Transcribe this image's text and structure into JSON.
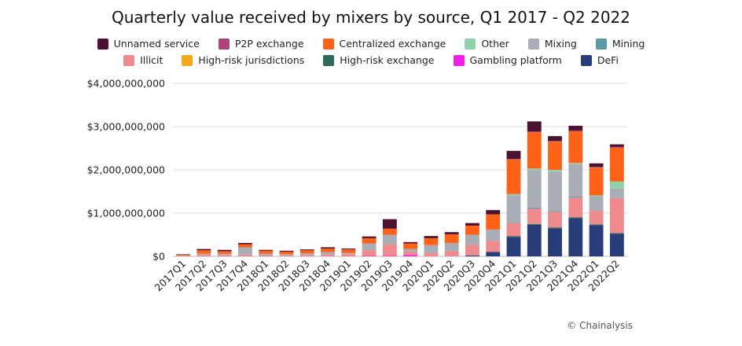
{
  "credit": "© Chainalysis",
  "legend_rows": [
    [
      "Unnamed service",
      "P2P exchange",
      "Centralized exchange",
      "Other",
      "Mixing",
      "Mining"
    ],
    [
      "Illicit",
      "High-risk jurisdictions",
      "High-risk exchange",
      "Gambling platform",
      "DeFi"
    ]
  ],
  "chart_data": {
    "type": "bar",
    "stacked": true,
    "title": "Quarterly value received by mixers by source, Q1 2017 - Q2 2022",
    "xlabel": "",
    "ylabel": "",
    "ylim": [
      0,
      4000000000
    ],
    "yticks": [
      {
        "value": 0,
        "label": "$0"
      },
      {
        "value": 1000000000,
        "label": "$1,000,000,000"
      },
      {
        "value": 2000000000,
        "label": "$2,000,000,000"
      },
      {
        "value": 3000000000,
        "label": "$3,000,000,000"
      },
      {
        "value": 4000000000,
        "label": "$4,000,000,000"
      }
    ],
    "grid": true,
    "legend_position": "top",
    "categories": [
      "2017Q1",
      "2017Q2",
      "2017Q3",
      "2017Q4",
      "2018Q1",
      "2018Q2",
      "2018Q3",
      "2018Q4",
      "2019Q1",
      "2019Q2",
      "2019Q3",
      "2019Q4",
      "2020Q1",
      "2020Q2",
      "2020Q3",
      "2020Q4",
      "2021Q1",
      "2021Q2",
      "2021Q3",
      "2021Q4",
      "2022Q1",
      "2022Q2"
    ],
    "series": [
      {
        "name": "DeFi",
        "color": "#283c7a",
        "values": [
          0,
          0,
          0,
          0,
          0,
          0,
          0,
          0,
          0,
          0,
          0,
          0,
          0,
          0,
          20000000,
          100000000,
          450000000,
          730000000,
          650000000,
          880000000,
          720000000,
          520000000
        ]
      },
      {
        "name": "Gambling platform",
        "color": "#f01ee6",
        "values": [
          0,
          0,
          0,
          0,
          0,
          0,
          0,
          0,
          0,
          10000000,
          10000000,
          30000000,
          0,
          0,
          0,
          0,
          0,
          0,
          0,
          0,
          0,
          0
        ]
      },
      {
        "name": "High-risk exchange",
        "color": "#2e6b5a",
        "values": [
          0,
          0,
          0,
          0,
          0,
          0,
          0,
          0,
          0,
          0,
          0,
          0,
          0,
          0,
          0,
          0,
          20000000,
          20000000,
          20000000,
          20000000,
          20000000,
          20000000
        ]
      },
      {
        "name": "High-risk jurisdictions",
        "color": "#f4a81d",
        "values": [
          0,
          0,
          0,
          0,
          0,
          0,
          0,
          0,
          0,
          0,
          0,
          0,
          0,
          0,
          0,
          0,
          0,
          0,
          0,
          0,
          0,
          0
        ]
      },
      {
        "name": "Illicit",
        "color": "#ef8a8e",
        "values": [
          10000000,
          30000000,
          30000000,
          40000000,
          20000000,
          20000000,
          30000000,
          40000000,
          50000000,
          130000000,
          270000000,
          80000000,
          80000000,
          120000000,
          250000000,
          260000000,
          300000000,
          350000000,
          360000000,
          460000000,
          320000000,
          810000000
        ]
      },
      {
        "name": "Mining",
        "color": "#5a9aa8",
        "values": [
          0,
          0,
          0,
          0,
          0,
          0,
          0,
          0,
          0,
          0,
          0,
          0,
          0,
          0,
          0,
          0,
          10000000,
          20000000,
          20000000,
          20000000,
          10000000,
          10000000
        ]
      },
      {
        "name": "Mixing",
        "color": "#a9adb5",
        "values": [
          10000000,
          30000000,
          30000000,
          170000000,
          40000000,
          30000000,
          40000000,
          60000000,
          30000000,
          160000000,
          220000000,
          60000000,
          180000000,
          190000000,
          230000000,
          260000000,
          630000000,
          870000000,
          910000000,
          760000000,
          320000000,
          210000000
        ]
      },
      {
        "name": "Other",
        "color": "#8fd1ad",
        "values": [
          0,
          0,
          0,
          0,
          0,
          0,
          0,
          0,
          0,
          0,
          0,
          0,
          0,
          0,
          0,
          0,
          30000000,
          40000000,
          40000000,
          20000000,
          20000000,
          160000000
        ]
      },
      {
        "name": "Centralized exchange",
        "color": "#ff6116",
        "values": [
          20000000,
          80000000,
          60000000,
          70000000,
          70000000,
          60000000,
          70000000,
          80000000,
          80000000,
          120000000,
          140000000,
          130000000,
          160000000,
          200000000,
          210000000,
          350000000,
          800000000,
          840000000,
          650000000,
          730000000,
          640000000,
          780000000
        ]
      },
      {
        "name": "P2P exchange",
        "color": "#a8457a",
        "values": [
          0,
          0,
          0,
          0,
          0,
          0,
          0,
          0,
          0,
          0,
          0,
          0,
          0,
          0,
          0,
          0,
          10000000,
          20000000,
          20000000,
          20000000,
          20000000,
          20000000
        ]
      },
      {
        "name": "Unnamed service",
        "color": "#4b1231",
        "values": [
          10000000,
          30000000,
          30000000,
          30000000,
          20000000,
          20000000,
          20000000,
          30000000,
          20000000,
          40000000,
          220000000,
          30000000,
          50000000,
          50000000,
          60000000,
          100000000,
          190000000,
          230000000,
          110000000,
          110000000,
          80000000,
          60000000
        ]
      }
    ]
  }
}
